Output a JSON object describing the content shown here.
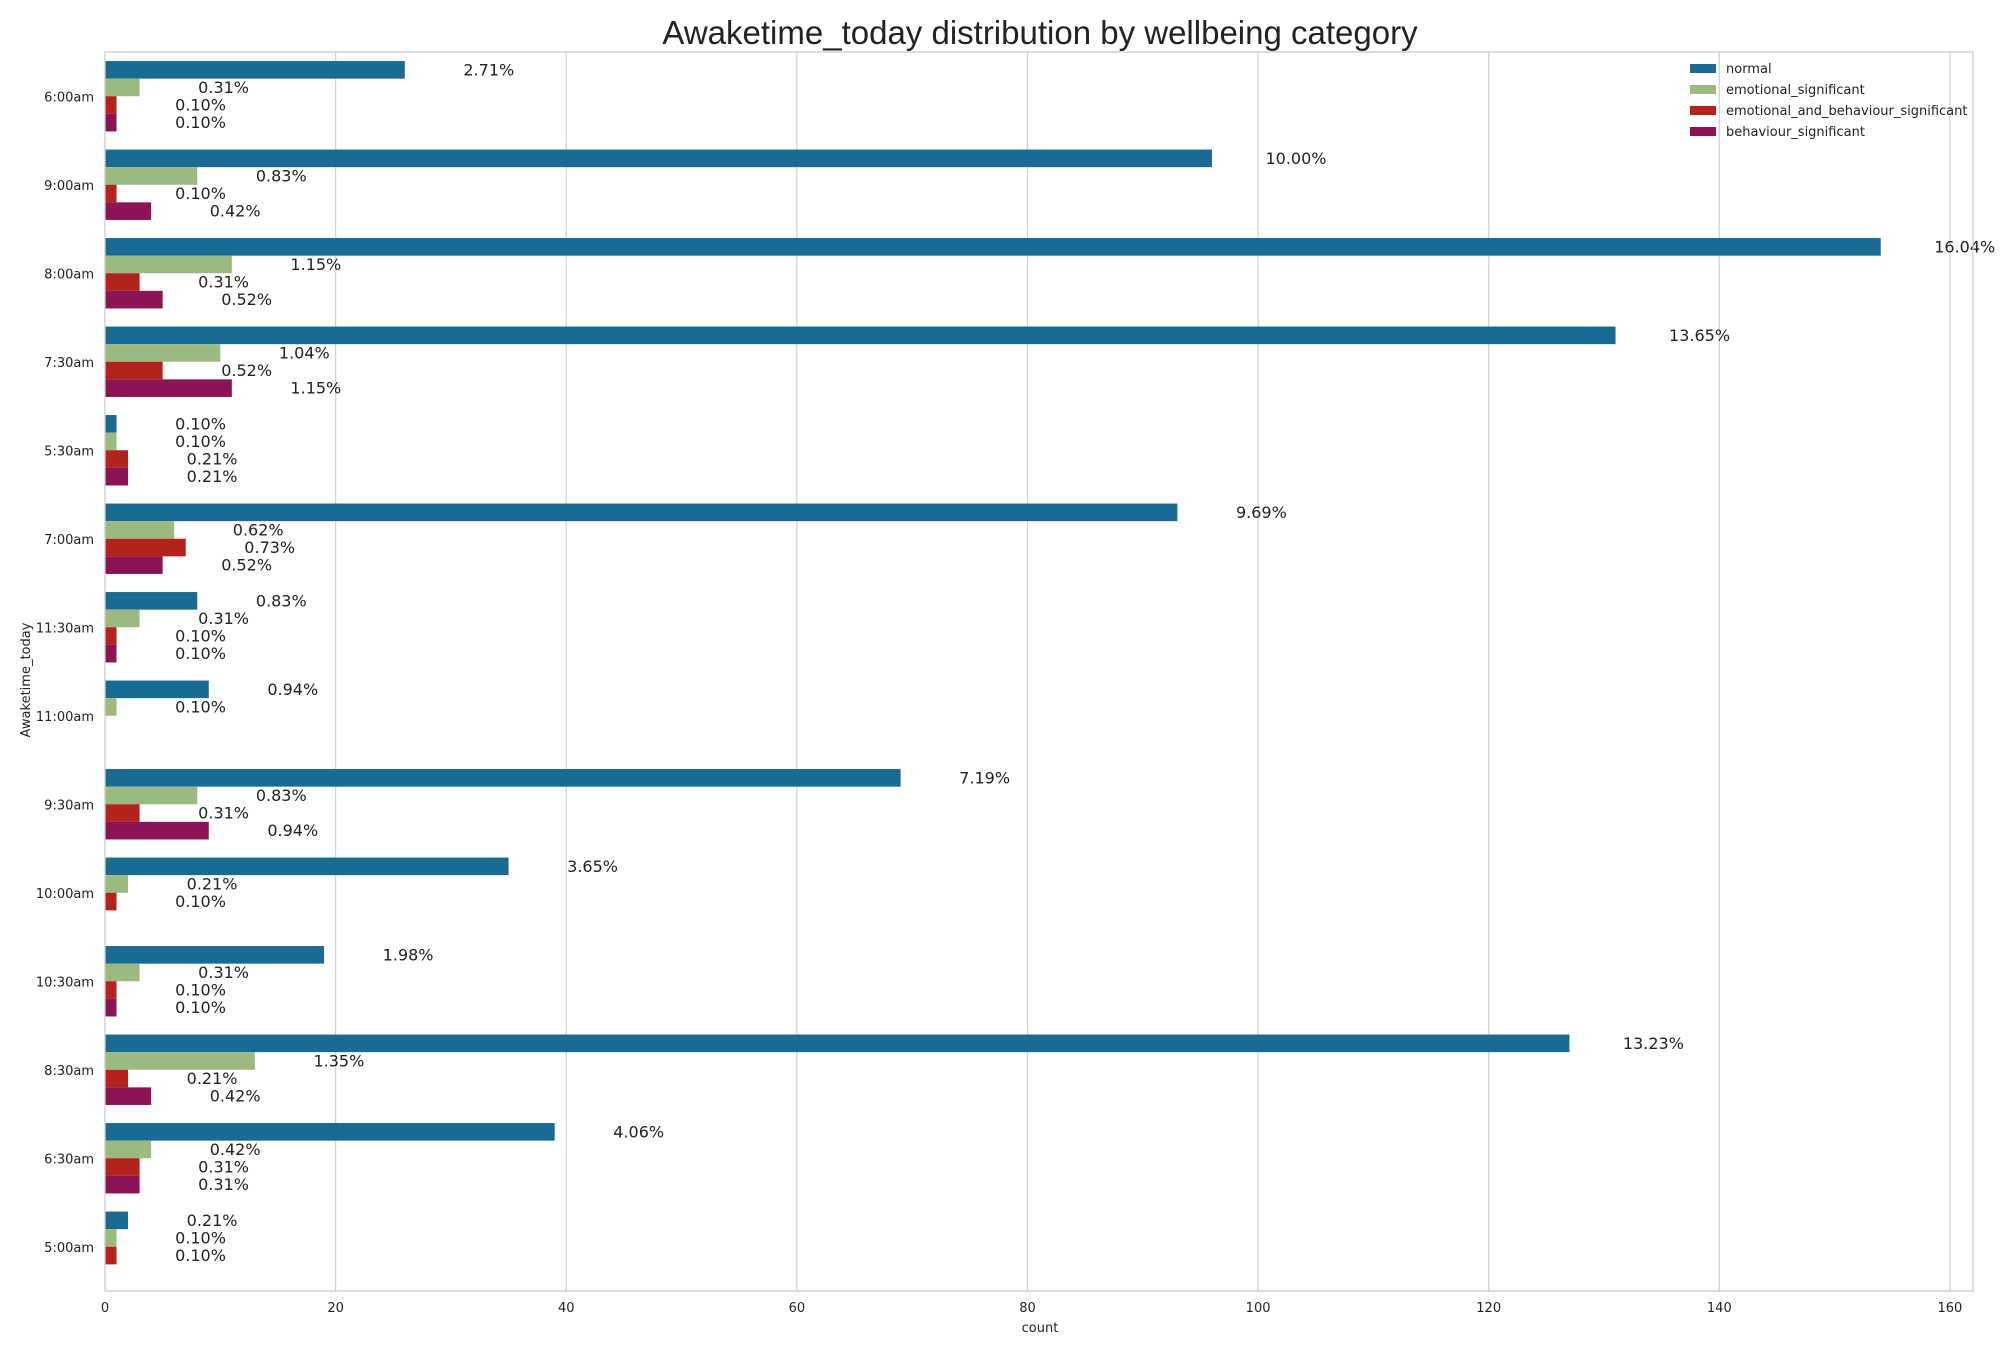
{
  "chart_data": {
    "type": "bar",
    "orientation": "horizontal",
    "title": "Awaketime_today distribution by wellbeing category",
    "xlabel": "count",
    "ylabel": "Awaketime_today",
    "xlim": [
      0,
      162
    ],
    "x_ticks": [
      0,
      20,
      40,
      60,
      80,
      100,
      120,
      140,
      160
    ],
    "grid": "vertical",
    "legend_position": "top-right",
    "categories": [
      "6:00am",
      "9:00am",
      "8:00am",
      "7:30am",
      "5:30am",
      "7:00am",
      "11:30am",
      "11:00am",
      "9:30am",
      "10:00am",
      "10:30am",
      "8:30am",
      "6:30am",
      "5:00am"
    ],
    "series": [
      {
        "name": "normal",
        "color": "#1a6b93",
        "values": [
          26,
          96,
          154,
          131,
          1,
          93,
          8,
          9,
          69,
          35,
          19,
          127,
          39,
          2
        ],
        "labels": [
          "2.71%",
          "10.00%",
          "16.04%",
          "13.65%",
          "0.10%",
          "9.69%",
          "0.83%",
          "0.94%",
          "7.19%",
          "3.65%",
          "1.98%",
          "13.23%",
          "4.06%",
          "0.21%"
        ]
      },
      {
        "name": "emotional_significant",
        "color": "#9cba7f",
        "values": [
          3,
          8,
          11,
          10,
          1,
          6,
          3,
          1,
          8,
          2,
          3,
          13,
          4,
          1
        ],
        "labels": [
          "0.31%",
          "0.83%",
          "1.15%",
          "1.04%",
          "0.10%",
          "0.62%",
          "0.31%",
          "0.10%",
          "0.83%",
          "0.21%",
          "0.31%",
          "1.35%",
          "0.42%",
          "0.10%"
        ]
      },
      {
        "name": "emotional_and_behaviour_significant",
        "color": "#b3221c",
        "values": [
          1,
          1,
          3,
          5,
          2,
          7,
          1,
          null,
          3,
          1,
          1,
          2,
          3,
          1
        ],
        "labels": [
          "0.10%",
          "0.10%",
          "0.31%",
          "0.52%",
          "0.21%",
          "0.73%",
          "0.10%",
          null,
          "0.31%",
          "0.10%",
          "0.10%",
          "0.21%",
          "0.31%",
          "0.10%"
        ]
      },
      {
        "name": "behaviour_significant",
        "color": "#8c1454",
        "values": [
          1,
          4,
          5,
          11,
          2,
          5,
          1,
          null,
          9,
          null,
          1,
          4,
          3,
          null
        ],
        "labels": [
          "0.10%",
          "0.42%",
          "0.52%",
          "1.15%",
          "0.21%",
          "0.52%",
          "0.10%",
          null,
          "0.94%",
          null,
          "0.10%",
          "0.42%",
          "0.31%",
          null
        ]
      }
    ]
  }
}
